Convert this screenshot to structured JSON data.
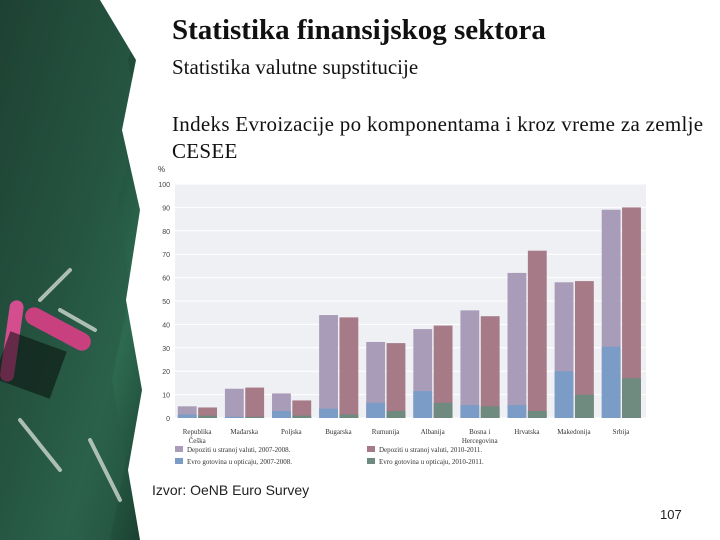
{
  "slide": {
    "title": "Statistika finansijskog sektora",
    "subtitle": "Statistika valutne supstitucije",
    "heading": "Indeks Evroizacije po komponentama i kroz vreme za zemlje CESEE",
    "source": "Izvor: OeNB Euro Survey",
    "page_number": "107"
  },
  "colors": {
    "deposits_2007_2008": "#a99cb8",
    "deposits_2010_2011": "#a67a86",
    "cash_2007_2008": "#7b9cc6",
    "cash_2010_2011": "#6f8a7e",
    "chart_bg": "#eef0f4"
  },
  "chart_data": {
    "type": "bar",
    "ylabel": "%",
    "ylim": [
      0,
      100
    ],
    "yticks": [
      0,
      10,
      20,
      30,
      40,
      50,
      60,
      70,
      80,
      90,
      100
    ],
    "grid": true,
    "categories": [
      {
        "line1": "Republika",
        "line2": "Češka"
      },
      {
        "line1": "Mađarska",
        "line2": ""
      },
      {
        "line1": "Poljska",
        "line2": ""
      },
      {
        "line1": "Bugarska",
        "line2": ""
      },
      {
        "line1": "Rumunija",
        "line2": ""
      },
      {
        "line1": "Albanija",
        "line2": ""
      },
      {
        "line1": "Bosna i",
        "line2": "Hercegovina"
      },
      {
        "line1": "Hrvatska",
        "line2": ""
      },
      {
        "line1": "Makedonija",
        "line2": ""
      },
      {
        "line1": "Srbija",
        "line2": ""
      }
    ],
    "series": [
      {
        "name": "Depoziti u stranoj valuti, 2007-2008.",
        "color_key": "deposits_2007_2008",
        "values": [
          5,
          12.5,
          10.5,
          44,
          32.5,
          38,
          46,
          62,
          58,
          89
        ]
      },
      {
        "name": "Depoziti u stranoj valuti, 2010-2011.",
        "color_key": "deposits_2010_2011",
        "values": [
          4.5,
          13,
          7.5,
          43,
          32,
          39.5,
          43.5,
          71.5,
          58.5,
          90
        ]
      },
      {
        "name": "Evro gotovina u opticaju, 2007-2008.",
        "color_key": "cash_2007_2008",
        "values": [
          1.5,
          0.5,
          3,
          4,
          6.5,
          11.5,
          5.5,
          5.5,
          20,
          30.5
        ]
      },
      {
        "name": "Evro gotovina u opticaju, 2010-2011.",
        "color_key": "cash_2010_2011",
        "values": [
          1,
          0.5,
          1,
          1.5,
          3,
          6.5,
          5,
          3,
          10,
          17
        ]
      }
    ],
    "legend": {
      "placement": "bottom",
      "rows": [
        [
          "Depoziti u stranoj valuti, 2007-2008.",
          "Depoziti u stranoj valuti, 2010-2011."
        ],
        [
          "Evro gotovina u opticaju, 2007-2008.",
          "Evro gotovina u opticaju, 2010-2011."
        ]
      ]
    }
  }
}
